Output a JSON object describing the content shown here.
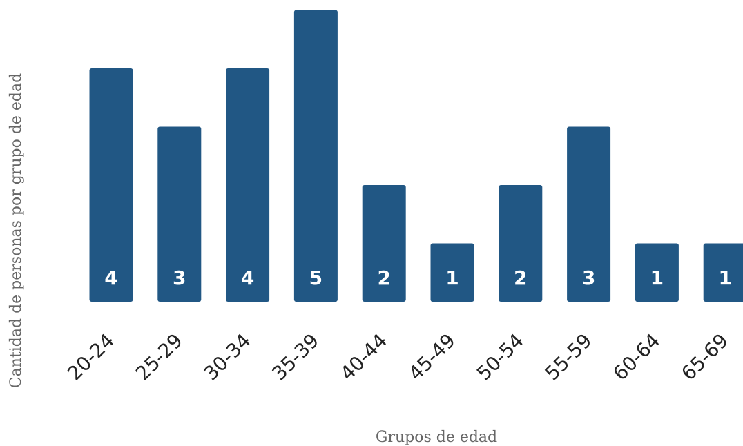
{
  "chart_data": {
    "type": "bar",
    "categories": [
      "20-24",
      "25-29",
      "30-34",
      "35-39",
      "40-44",
      "45-49",
      "50-54",
      "55-59",
      "60-64",
      "65-69"
    ],
    "values": [
      4,
      3,
      4,
      5,
      2,
      1,
      2,
      3,
      1,
      1
    ],
    "data_labels": [
      "4",
      "3",
      "4",
      "5",
      "2",
      "1",
      "2",
      "3",
      "1",
      "1"
    ],
    "title": "",
    "xlabel": "Grupos de edad",
    "ylabel": "Cantidad de personas por grupo de edad",
    "ylim": [
      0,
      5
    ],
    "grid": false,
    "legend": "none",
    "colors": {
      "bar": "#215784",
      "data_label": "#ffffff",
      "tick_label": "#222222",
      "axis_title": "#666666"
    }
  }
}
